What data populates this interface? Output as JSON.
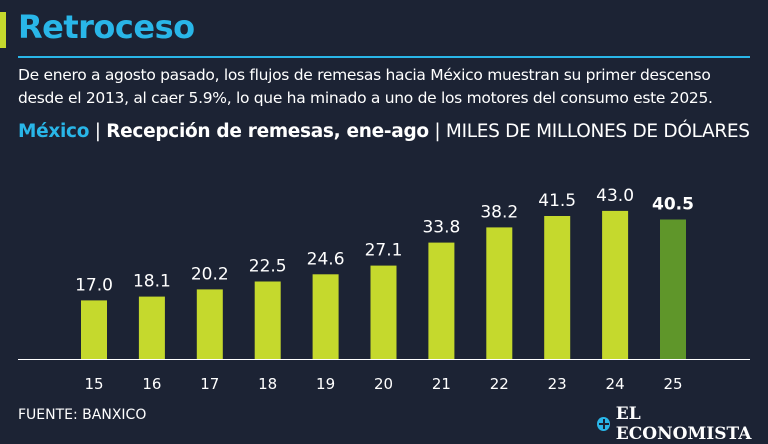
{
  "header": {
    "title": "Retroceso",
    "subtitle": "De enero a agosto pasado, los flujos de remesas hacia México muestran su primer descenso desde el 2013, al caer 5.9%, lo que ha minado a uno de los motores del consumo este 2025."
  },
  "chart_heading": {
    "country": "México",
    "sep1": "|",
    "measure": "Recepción de remesas, ene-ago",
    "sep2": "|",
    "units": "MILES DE MILLONES DE DÓLARES"
  },
  "chart_data": {
    "type": "bar",
    "title": "Recepción de remesas, ene-ago",
    "xlabel": "",
    "ylabel": "MILES DE MILLONES DE DÓLARES",
    "categories": [
      "15",
      "16",
      "17",
      "18",
      "19",
      "20",
      "21",
      "22",
      "23",
      "24",
      "25"
    ],
    "values": [
      17.0,
      18.1,
      20.2,
      22.5,
      24.6,
      27.1,
      33.8,
      38.2,
      41.5,
      43.0,
      40.5
    ],
    "labels": [
      "17.0",
      "18.1",
      "20.2",
      "22.5",
      "24.6",
      "27.1",
      "33.8",
      "38.2",
      "41.5",
      "43.0",
      "40.5"
    ],
    "highlight_index": 10,
    "ylim": [
      0,
      50
    ],
    "grid": false,
    "colors": {
      "bar": "#c5d92d",
      "highlight": "#5f962a",
      "axis": "#ffffff"
    }
  },
  "footer": {
    "source": "FUENTE: BANXICO",
    "brand": "EL ECONOMISTA",
    "brand_icon": "globe-icon"
  },
  "colors": {
    "background": "#1c2334",
    "accent_blue": "#29b6e8",
    "accent_lime": "#c5d92d"
  }
}
